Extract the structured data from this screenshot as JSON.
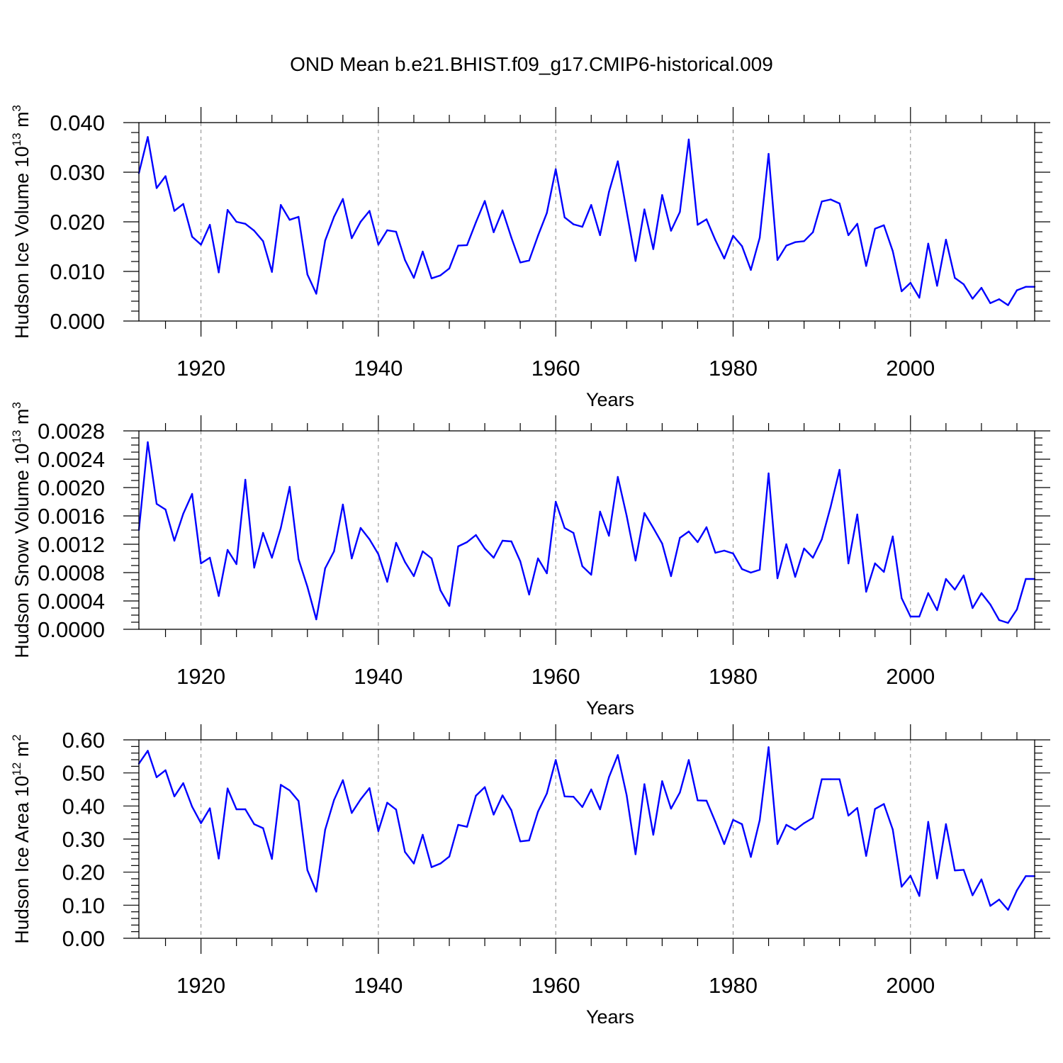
{
  "title": "OND Mean b.e21.BHIST.f09_g17.CMIP6-historical.009",
  "line_color": "#0000ff",
  "chart_data": [
    {
      "type": "line",
      "name": "ice-volume",
      "ylabel_main": "Hudson Ice Volume 10",
      "ylabel_sup": "13",
      "ylabel_unit": " m",
      "ylabel_unit_sup": "3",
      "xlabel": "Years",
      "x_start": 1913,
      "x_end": 2014,
      "xlim": [
        1913,
        2014
      ],
      "ylim": [
        0,
        0.04
      ],
      "ytick_values": [
        0,
        0.01,
        0.02,
        0.03,
        0.04
      ],
      "ytick_labels": [
        "0.000",
        "0.010",
        "0.020",
        "0.030",
        "0.040"
      ],
      "ytick_minor_step": 0.002,
      "xtick_values": [
        1920,
        1940,
        1960,
        1980,
        2000
      ],
      "xtick_labels": [
        "1920",
        "1940",
        "1960",
        "1980",
        "2000"
      ],
      "xtick_minor_step": 4,
      "grid_x": true,
      "values": [
        0.0298,
        0.0371,
        0.0268,
        0.0292,
        0.0222,
        0.0236,
        0.017,
        0.0154,
        0.0194,
        0.0098,
        0.0224,
        0.02,
        0.0196,
        0.0182,
        0.0161,
        0.0099,
        0.0234,
        0.0204,
        0.021,
        0.0094,
        0.0055,
        0.0162,
        0.021,
        0.0246,
        0.0167,
        0.02,
        0.0222,
        0.0154,
        0.0183,
        0.018,
        0.0123,
        0.0087,
        0.014,
        0.0086,
        0.0092,
        0.0106,
        0.0152,
        0.0153,
        0.0199,
        0.0242,
        0.0179,
        0.0223,
        0.0168,
        0.0118,
        0.0122,
        0.0172,
        0.0218,
        0.0306,
        0.0209,
        0.0195,
        0.019,
        0.0234,
        0.0173,
        0.026,
        0.0322,
        0.0221,
        0.0121,
        0.0225,
        0.0145,
        0.0254,
        0.0182,
        0.022,
        0.0366,
        0.0194,
        0.0205,
        0.0163,
        0.0126,
        0.0172,
        0.0151,
        0.0103,
        0.0168,
        0.0337,
        0.0123,
        0.0152,
        0.0159,
        0.0161,
        0.0179,
        0.0241,
        0.0245,
        0.0237,
        0.0173,
        0.0196,
        0.0111,
        0.0186,
        0.0193,
        0.0141,
        0.006,
        0.0077,
        0.0047,
        0.0156,
        0.0071,
        0.0164,
        0.0087,
        0.0074,
        0.0045,
        0.0067,
        0.0036,
        0.0044,
        0.0032,
        0.0062,
        0.0069,
        0.0069
      ]
    },
    {
      "type": "line",
      "name": "snow-volume",
      "ylabel_main": "Hudson Snow Volume 10",
      "ylabel_sup": "13",
      "ylabel_unit": " m",
      "ylabel_unit_sup": "3",
      "xlabel": "Years",
      "x_start": 1913,
      "x_end": 2014,
      "xlim": [
        1913,
        2014
      ],
      "ylim": [
        0,
        0.0028
      ],
      "ytick_values": [
        0,
        0.0004,
        0.0008,
        0.0012,
        0.0016,
        0.002,
        0.0024,
        0.0028
      ],
      "ytick_labels": [
        "0.0000",
        "0.0004",
        "0.0008",
        "0.0012",
        "0.0016",
        "0.0020",
        "0.0024",
        "0.0028"
      ],
      "ytick_minor_step": 0.0001,
      "xtick_values": [
        1920,
        1940,
        1960,
        1980,
        2000
      ],
      "xtick_labels": [
        "1920",
        "1940",
        "1960",
        "1980",
        "2000"
      ],
      "xtick_minor_step": 4,
      "grid_x": true,
      "values": [
        0.0014,
        0.00264,
        0.00177,
        0.00169,
        0.00125,
        0.00163,
        0.00191,
        0.00093,
        0.00101,
        0.00047,
        0.00112,
        0.00092,
        0.00211,
        0.00087,
        0.00136,
        0.00101,
        0.00143,
        0.00201,
        0.00099,
        0.0006,
        0.00014,
        0.00086,
        0.0011,
        0.00176,
        0.001,
        0.00143,
        0.00127,
        0.00106,
        0.00067,
        0.00122,
        0.00095,
        0.00075,
        0.0011,
        0.001,
        0.00055,
        0.00033,
        0.00117,
        0.00123,
        0.00133,
        0.00114,
        0.00101,
        0.00125,
        0.00124,
        0.00096,
        0.00049,
        0.001,
        0.00079,
        0.0018,
        0.00143,
        0.00136,
        0.00089,
        0.00077,
        0.00166,
        0.00132,
        0.00215,
        0.0016,
        0.00097,
        0.00164,
        0.00143,
        0.00121,
        0.00075,
        0.00129,
        0.00138,
        0.00123,
        0.00144,
        0.00108,
        0.00111,
        0.00107,
        0.00085,
        0.0008,
        0.00084,
        0.0022,
        0.00072,
        0.0012,
        0.00074,
        0.00114,
        0.00101,
        0.00127,
        0.00173,
        0.00225,
        0.00093,
        0.00162,
        0.00053,
        0.00093,
        0.00081,
        0.00131,
        0.00044,
        0.00018,
        0.00018,
        0.00051,
        0.00027,
        0.00071,
        0.00056,
        0.00076,
        0.0003,
        0.00051,
        0.00035,
        0.00013,
        9e-05,
        0.00028,
        0.00071,
        0.00071
      ]
    },
    {
      "type": "line",
      "name": "ice-area",
      "ylabel_main": "Hudson Ice Area 10",
      "ylabel_sup": "12",
      "ylabel_unit": " m",
      "ylabel_unit_sup": "2",
      "xlabel": "Years",
      "x_start": 1913,
      "x_end": 2014,
      "xlim": [
        1913,
        2014
      ],
      "ylim": [
        0,
        0.6
      ],
      "ytick_values": [
        0,
        0.1,
        0.2,
        0.3,
        0.4,
        0.5,
        0.6
      ],
      "ytick_labels": [
        "0.00",
        "0.10",
        "0.20",
        "0.30",
        "0.40",
        "0.50",
        "0.60"
      ],
      "ytick_minor_step": 0.02,
      "xtick_values": [
        1920,
        1940,
        1960,
        1980,
        2000
      ],
      "xtick_labels": [
        "1920",
        "1940",
        "1960",
        "1980",
        "2000"
      ],
      "xtick_minor_step": 4,
      "grid_x": true,
      "values": [
        0.528,
        0.567,
        0.487,
        0.508,
        0.429,
        0.469,
        0.398,
        0.348,
        0.393,
        0.241,
        0.453,
        0.39,
        0.39,
        0.345,
        0.333,
        0.24,
        0.464,
        0.447,
        0.415,
        0.206,
        0.141,
        0.328,
        0.418,
        0.478,
        0.379,
        0.42,
        0.454,
        0.324,
        0.41,
        0.389,
        0.261,
        0.226,
        0.313,
        0.215,
        0.226,
        0.247,
        0.343,
        0.337,
        0.431,
        0.457,
        0.374,
        0.432,
        0.387,
        0.293,
        0.296,
        0.383,
        0.438,
        0.539,
        0.429,
        0.428,
        0.397,
        0.45,
        0.39,
        0.487,
        0.554,
        0.432,
        0.254,
        0.466,
        0.313,
        0.475,
        0.392,
        0.441,
        0.539,
        0.417,
        0.416,
        0.352,
        0.285,
        0.358,
        0.345,
        0.246,
        0.357,
        0.578,
        0.285,
        0.343,
        0.328,
        0.348,
        0.364,
        0.481,
        0.481,
        0.481,
        0.371,
        0.394,
        0.249,
        0.391,
        0.406,
        0.329,
        0.156,
        0.189,
        0.128,
        0.352,
        0.181,
        0.345,
        0.205,
        0.207,
        0.13,
        0.178,
        0.098,
        0.117,
        0.086,
        0.145,
        0.188,
        0.188
      ]
    }
  ]
}
